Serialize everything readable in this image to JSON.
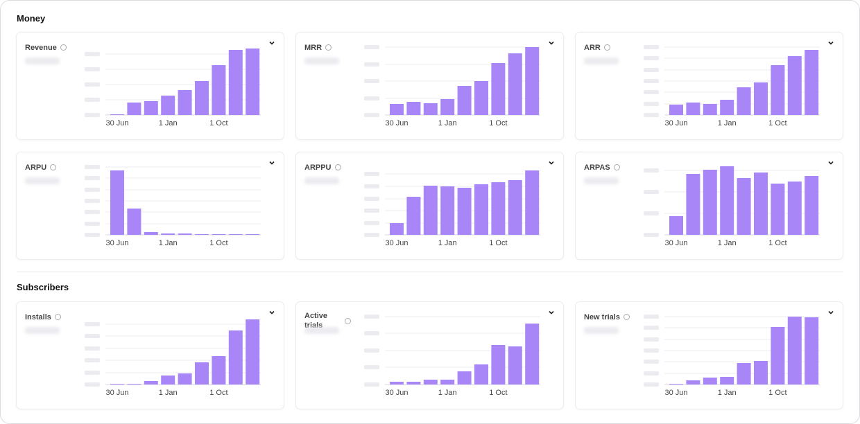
{
  "sections": [
    {
      "title": "Money"
    },
    {
      "title": "Subscribers"
    }
  ],
  "chart_data": [
    {
      "type": "bar",
      "title": "Revenue",
      "categories": [
        "30 Jun",
        null,
        null,
        "1 Jan",
        null,
        null,
        "1 Oct",
        null,
        null
      ],
      "values": [
        1,
        18,
        20,
        28,
        36,
        49,
        72,
        94,
        96
      ],
      "color": "#a986f7",
      "ylim": [
        0,
        100
      ],
      "yticks": [
        0,
        22,
        44,
        66,
        88
      ],
      "grid": true
    },
    {
      "type": "bar",
      "title": "MRR",
      "categories": [
        "30 Jun",
        null,
        null,
        "1 Jan",
        null,
        null,
        "1 Oct",
        null,
        null
      ],
      "values": [
        16,
        19,
        17,
        23,
        42,
        49,
        75,
        89,
        98
      ],
      "color": "#a986f7",
      "ylim": [
        0,
        100
      ],
      "yticks": [
        0,
        24,
        49,
        73,
        98
      ],
      "grid": true
    },
    {
      "type": "bar",
      "title": "ARR",
      "categories": [
        "30 Jun",
        null,
        null,
        "1 Jan",
        null,
        null,
        "1 Oct",
        null,
        null
      ],
      "values": [
        15,
        18,
        16,
        22,
        40,
        47,
        72,
        85,
        94
      ],
      "color": "#a986f7",
      "ylim": [
        0,
        100
      ],
      "yticks": [
        0,
        16,
        33,
        49,
        65,
        82,
        98
      ],
      "grid": true
    },
    {
      "type": "bar",
      "title": "ARPU",
      "categories": [
        "30 Jun",
        null,
        null,
        "1 Jan",
        null,
        null,
        "1 Oct",
        null,
        null
      ],
      "values": [
        93,
        38,
        4,
        2,
        2,
        1,
        1,
        1,
        1
      ],
      "color": "#a986f7",
      "ylim": [
        0,
        100
      ],
      "yticks": [
        0,
        16,
        33,
        49,
        65,
        82,
        98
      ],
      "grid": true
    },
    {
      "type": "bar",
      "title": "ARPPU",
      "categories": [
        "30 Jun",
        null,
        null,
        "1 Jan",
        null,
        null,
        "1 Oct",
        null,
        null
      ],
      "values": [
        17,
        55,
        71,
        70,
        68,
        73,
        76,
        79,
        93
      ],
      "color": "#a986f7",
      "ylim": [
        0,
        100
      ],
      "yticks": [
        0,
        17,
        35,
        52,
        70,
        88
      ],
      "grid": true
    },
    {
      "type": "bar",
      "title": "ARPAS",
      "categories": [
        "30 Jun",
        null,
        null,
        "1 Jan",
        null,
        null,
        "1 Oct",
        null,
        null
      ],
      "values": [
        27,
        88,
        94,
        99,
        82,
        90,
        74,
        77,
        85
      ],
      "color": "#a986f7",
      "ylim": [
        0,
        100
      ],
      "yticks": [
        0,
        31,
        62,
        93
      ],
      "grid": true
    },
    {
      "type": "bar",
      "title": "Installs",
      "categories": [
        "30 Jun",
        null,
        null,
        "1 Jan",
        null,
        null,
        "1 Oct",
        null,
        null
      ],
      "values": [
        1,
        1,
        5,
        13,
        16,
        32,
        41,
        78,
        94
      ],
      "color": "#a986f7",
      "ylim": [
        0,
        100
      ],
      "yticks": [
        0,
        17,
        35,
        52,
        70,
        87
      ],
      "grid": true
    },
    {
      "type": "bar",
      "title": "Active trials",
      "categories": [
        "30 Jun",
        null,
        null,
        "1 Jan",
        null,
        null,
        "1 Oct",
        null,
        null
      ],
      "values": [
        4,
        4,
        7,
        7,
        19,
        29,
        57,
        55,
        88
      ],
      "color": "#a986f7",
      "ylim": [
        0,
        100
      ],
      "yticks": [
        0,
        25,
        49,
        74,
        98
      ],
      "grid": true
    },
    {
      "type": "bar",
      "title": "New trials",
      "categories": [
        "30 Jun",
        null,
        null,
        "1 Jan",
        null,
        null,
        "1 Oct",
        null,
        null
      ],
      "values": [
        1,
        6,
        10,
        11,
        31,
        34,
        83,
        98,
        97
      ],
      "color": "#a986f7",
      "ylim": [
        0,
        100
      ],
      "yticks": [
        0,
        16,
        33,
        49,
        65,
        82,
        98
      ],
      "grid": true
    }
  ]
}
